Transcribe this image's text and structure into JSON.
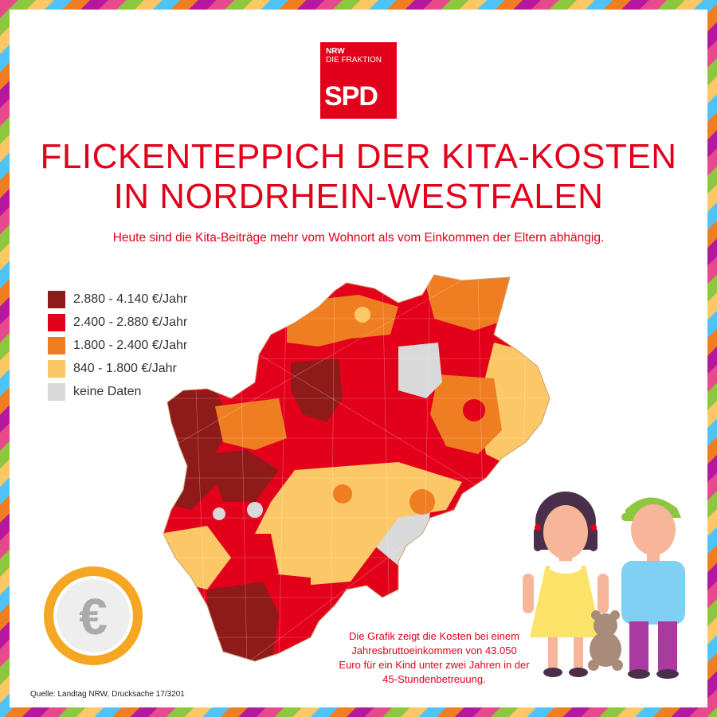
{
  "logo": {
    "line1": "NRW",
    "line2": "DIE FRAKTION",
    "brand": "SPD",
    "color": "#e3001b"
  },
  "title_line1": "FLICKENTEPPICH DER KITA-KOSTEN",
  "title_line2": "IN NORDRHEIN-WESTFALEN",
  "subtitle": "Heute sind die Kita-Beiträge mehr vom Wohnort als vom Einkommen der Eltern abhängig.",
  "legend": [
    {
      "label": "2.880 - 4.140 €/Jahr",
      "color": "#8f1a1a"
    },
    {
      "label": "2.400 - 2.880 €/Jahr",
      "color": "#e3001b"
    },
    {
      "label": "1.800 - 2.400 €/Jahr",
      "color": "#ef7d22"
    },
    {
      "label": "840 - 1.800 €/Jahr",
      "color": "#fcc766"
    },
    {
      "label": "keine Daten",
      "color": "#d9d9d9"
    }
  ],
  "coin_symbol": "€",
  "note": [
    "Die Grafik zeigt die Kosten bei einem",
    "Jahresbruttoeinkommen von 43.050",
    "Euro für ein Kind unter zwei Jahren in der",
    "45-Stundenbetreuung."
  ],
  "source": "Quelle: Landtag NRW, Drucksache 17/3201",
  "border_colors": [
    "#e64a8c",
    "#8dc63f",
    "#fcc766",
    "#4fc3f7",
    "#ef7d22",
    "#b5179e"
  ]
}
